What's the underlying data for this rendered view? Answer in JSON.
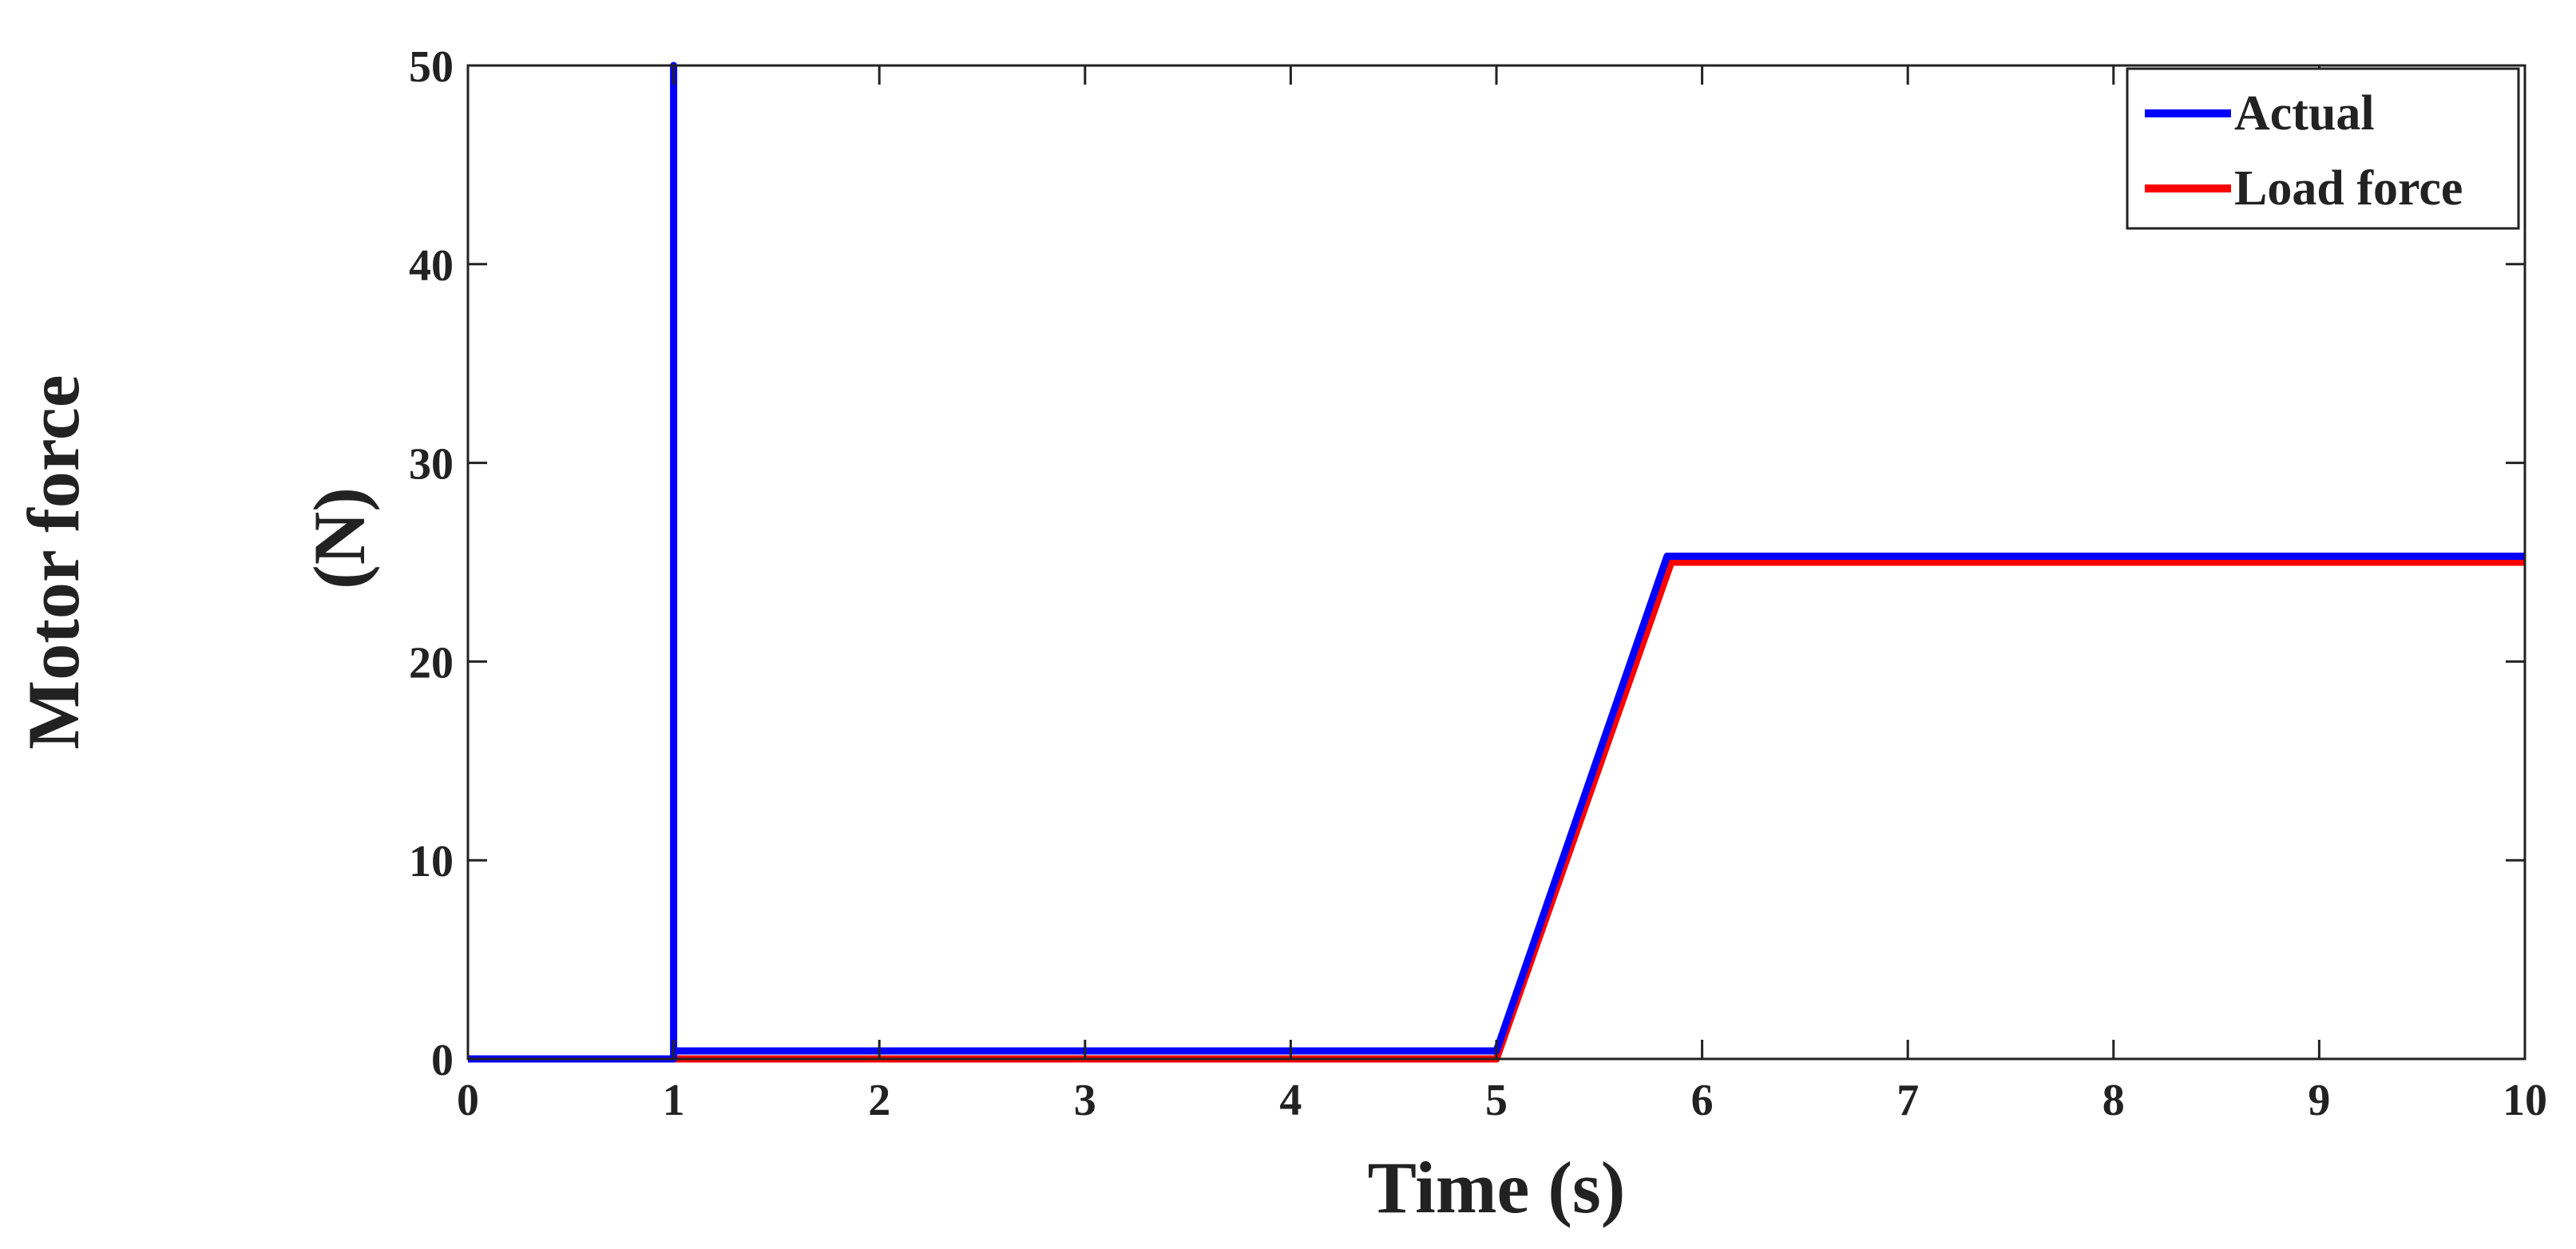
{
  "chart_data": {
    "type": "line",
    "title": "",
    "xlabel": "Time (s)",
    "ylabel_lines": [
      "Motor force",
      "(N)"
    ],
    "xlim": [
      0,
      10
    ],
    "ylim": [
      0,
      50
    ],
    "xticks": [
      0,
      1,
      2,
      3,
      4,
      5,
      6,
      7,
      8,
      9,
      10
    ],
    "yticks": [
      0,
      10,
      20,
      30,
      40,
      50
    ],
    "grid": false,
    "legend_position": "top-right",
    "series": [
      {
        "name": "Actual",
        "color": "#0000ff",
        "x": [
          0,
          1,
          1,
          1.0,
          5,
          5.83,
          10
        ],
        "y": [
          0,
          0,
          50,
          0.4,
          0.4,
          25.3,
          25.3
        ]
      },
      {
        "name": "Load force",
        "color": "#ff0000",
        "x": [
          0,
          5,
          5.85,
          10
        ],
        "y": [
          0,
          0,
          25,
          25
        ]
      }
    ]
  }
}
